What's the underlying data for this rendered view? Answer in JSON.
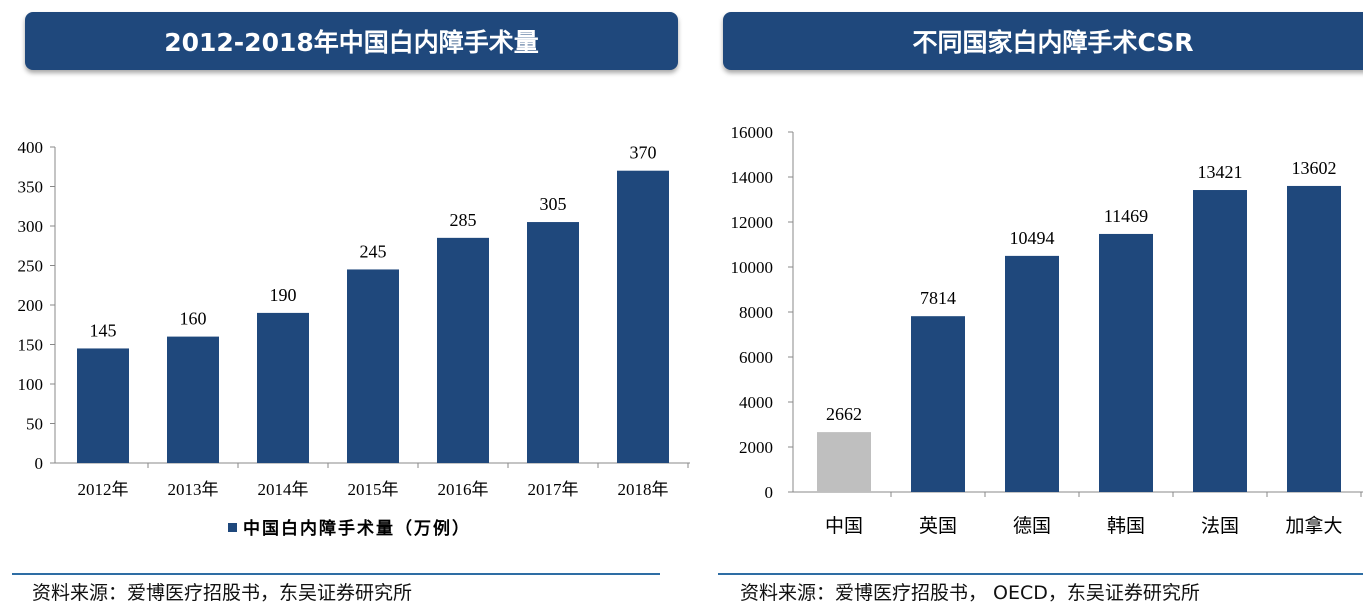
{
  "colors": {
    "header_bg": "#1f487c",
    "bar": "#1f487c",
    "bar_highlight": "#bfbfbf",
    "rule": "#2e6da4"
  },
  "chart_data": [
    {
      "type": "bar",
      "title": "2012-2018年中国白内障手术量",
      "categories": [
        "2012年",
        "2013年",
        "2014年",
        "2015年",
        "2016年",
        "2017年",
        "2018年"
      ],
      "series": [
        {
          "name": "中国白内障手术量（万例）",
          "values": [
            145,
            160,
            190,
            245,
            285,
            305,
            370
          ]
        }
      ],
      "ylim": [
        0,
        400
      ],
      "yticks": [
        0,
        50,
        100,
        150,
        200,
        250,
        300,
        350,
        400
      ],
      "grid": false,
      "legend": "bottom",
      "source": "资料来源：爱博医疗招股书，东吴证券研究所"
    },
    {
      "type": "bar",
      "title": "不同国家白内障手术CSR",
      "categories": [
        "中国",
        "英国",
        "德国",
        "韩国",
        "法国",
        "加拿大"
      ],
      "series": [
        {
          "values": [
            2662,
            7814,
            10494,
            11469,
            13421,
            13602
          ]
        }
      ],
      "highlight_category": "中国",
      "ylim": [
        0,
        16000
      ],
      "yticks": [
        0,
        2000,
        4000,
        6000,
        8000,
        10000,
        12000,
        14000,
        16000
      ],
      "grid": false,
      "source": "资料来源：爱博医疗招股书， OECD，东吴证券研究所"
    }
  ]
}
